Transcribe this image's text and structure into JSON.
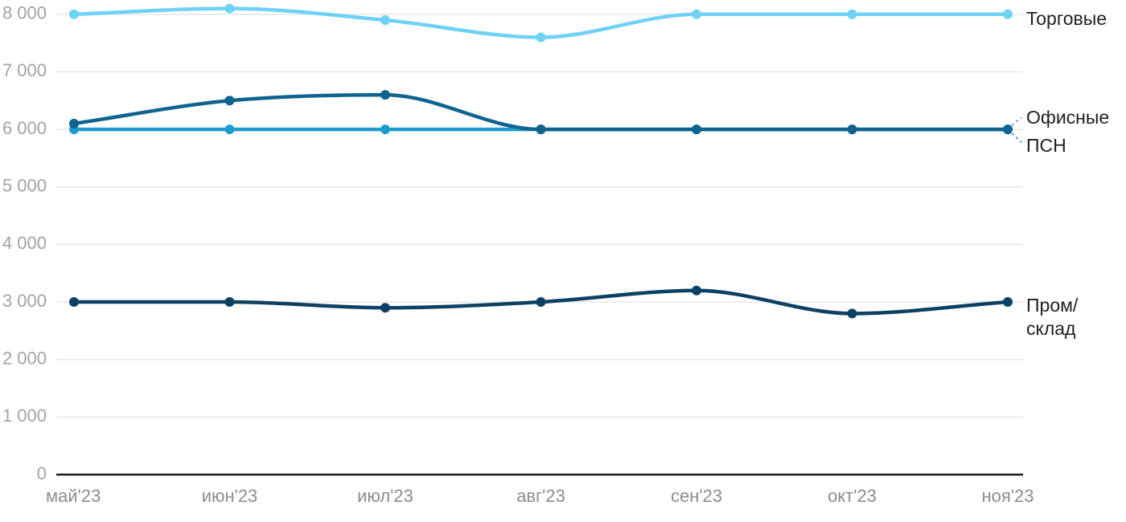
{
  "chart_data": {
    "type": "line",
    "title": "",
    "categories": [
      "май'23",
      "июн'23",
      "июл'23",
      "авг'23",
      "сен'23",
      "окт'23",
      "ноя'23"
    ],
    "xlabel": "",
    "ylabel": "",
    "ylim": [
      0,
      8000
    ],
    "grid": true,
    "legend_position": "right-edge-labels",
    "y_axis": {
      "ticks": [
        {
          "v": 8000,
          "label": "8 000"
        },
        {
          "v": 7000,
          "label": "7 000"
        },
        {
          "v": 6000,
          "label": "6 000"
        },
        {
          "v": 5000,
          "label": "5 000"
        },
        {
          "v": 4000,
          "label": "4 000"
        },
        {
          "v": 3000,
          "label": "3 000"
        },
        {
          "v": 2000,
          "label": "2 000"
        },
        {
          "v": 1000,
          "label": "1 000"
        },
        {
          "v": 0,
          "label": "0"
        }
      ]
    },
    "series": [
      {
        "key": "torgovye",
        "name": "Торговые",
        "color": "#6fd1f6",
        "values": [
          8000,
          8100,
          7900,
          7600,
          8000,
          8000,
          8000
        ],
        "label_lines": [
          "Торговые"
        ],
        "label_offset": 7,
        "leader": "none"
      },
      {
        "key": "psn",
        "name": "ПСН",
        "color": "#1e9cd2",
        "values": [
          6000,
          6000,
          6000,
          6000,
          6000,
          6000,
          6000
        ],
        "label_lines": [
          "ПСН"
        ],
        "label_offset": 22,
        "leader": "dashed-down"
      },
      {
        "key": "ofisnye",
        "name": "Офисные",
        "color": "#0e6390",
        "values": [
          6100,
          6500,
          6600,
          6000,
          6000,
          6000,
          6000
        ],
        "label_lines": [
          "Офисные"
        ],
        "label_offset": -13,
        "leader": "dashed-up"
      },
      {
        "key": "prom-sklad",
        "name": "Пром/склад",
        "color": "#0d4164",
        "values": [
          3000,
          3000,
          2900,
          3000,
          3200,
          2800,
          3000
        ],
        "label_lines": [
          "Пром/",
          "склад"
        ],
        "label_offset": 6,
        "leader": "none"
      }
    ],
    "styles": {
      "background": "#ffffff",
      "grid_color": "#e8e8e8",
      "zero_axis_color": "#1c1c1c",
      "y_tick_color": "#a3a3a3",
      "x_tick_color": "#8c8c8c",
      "series_label_color": "#1f1f1f"
    }
  }
}
